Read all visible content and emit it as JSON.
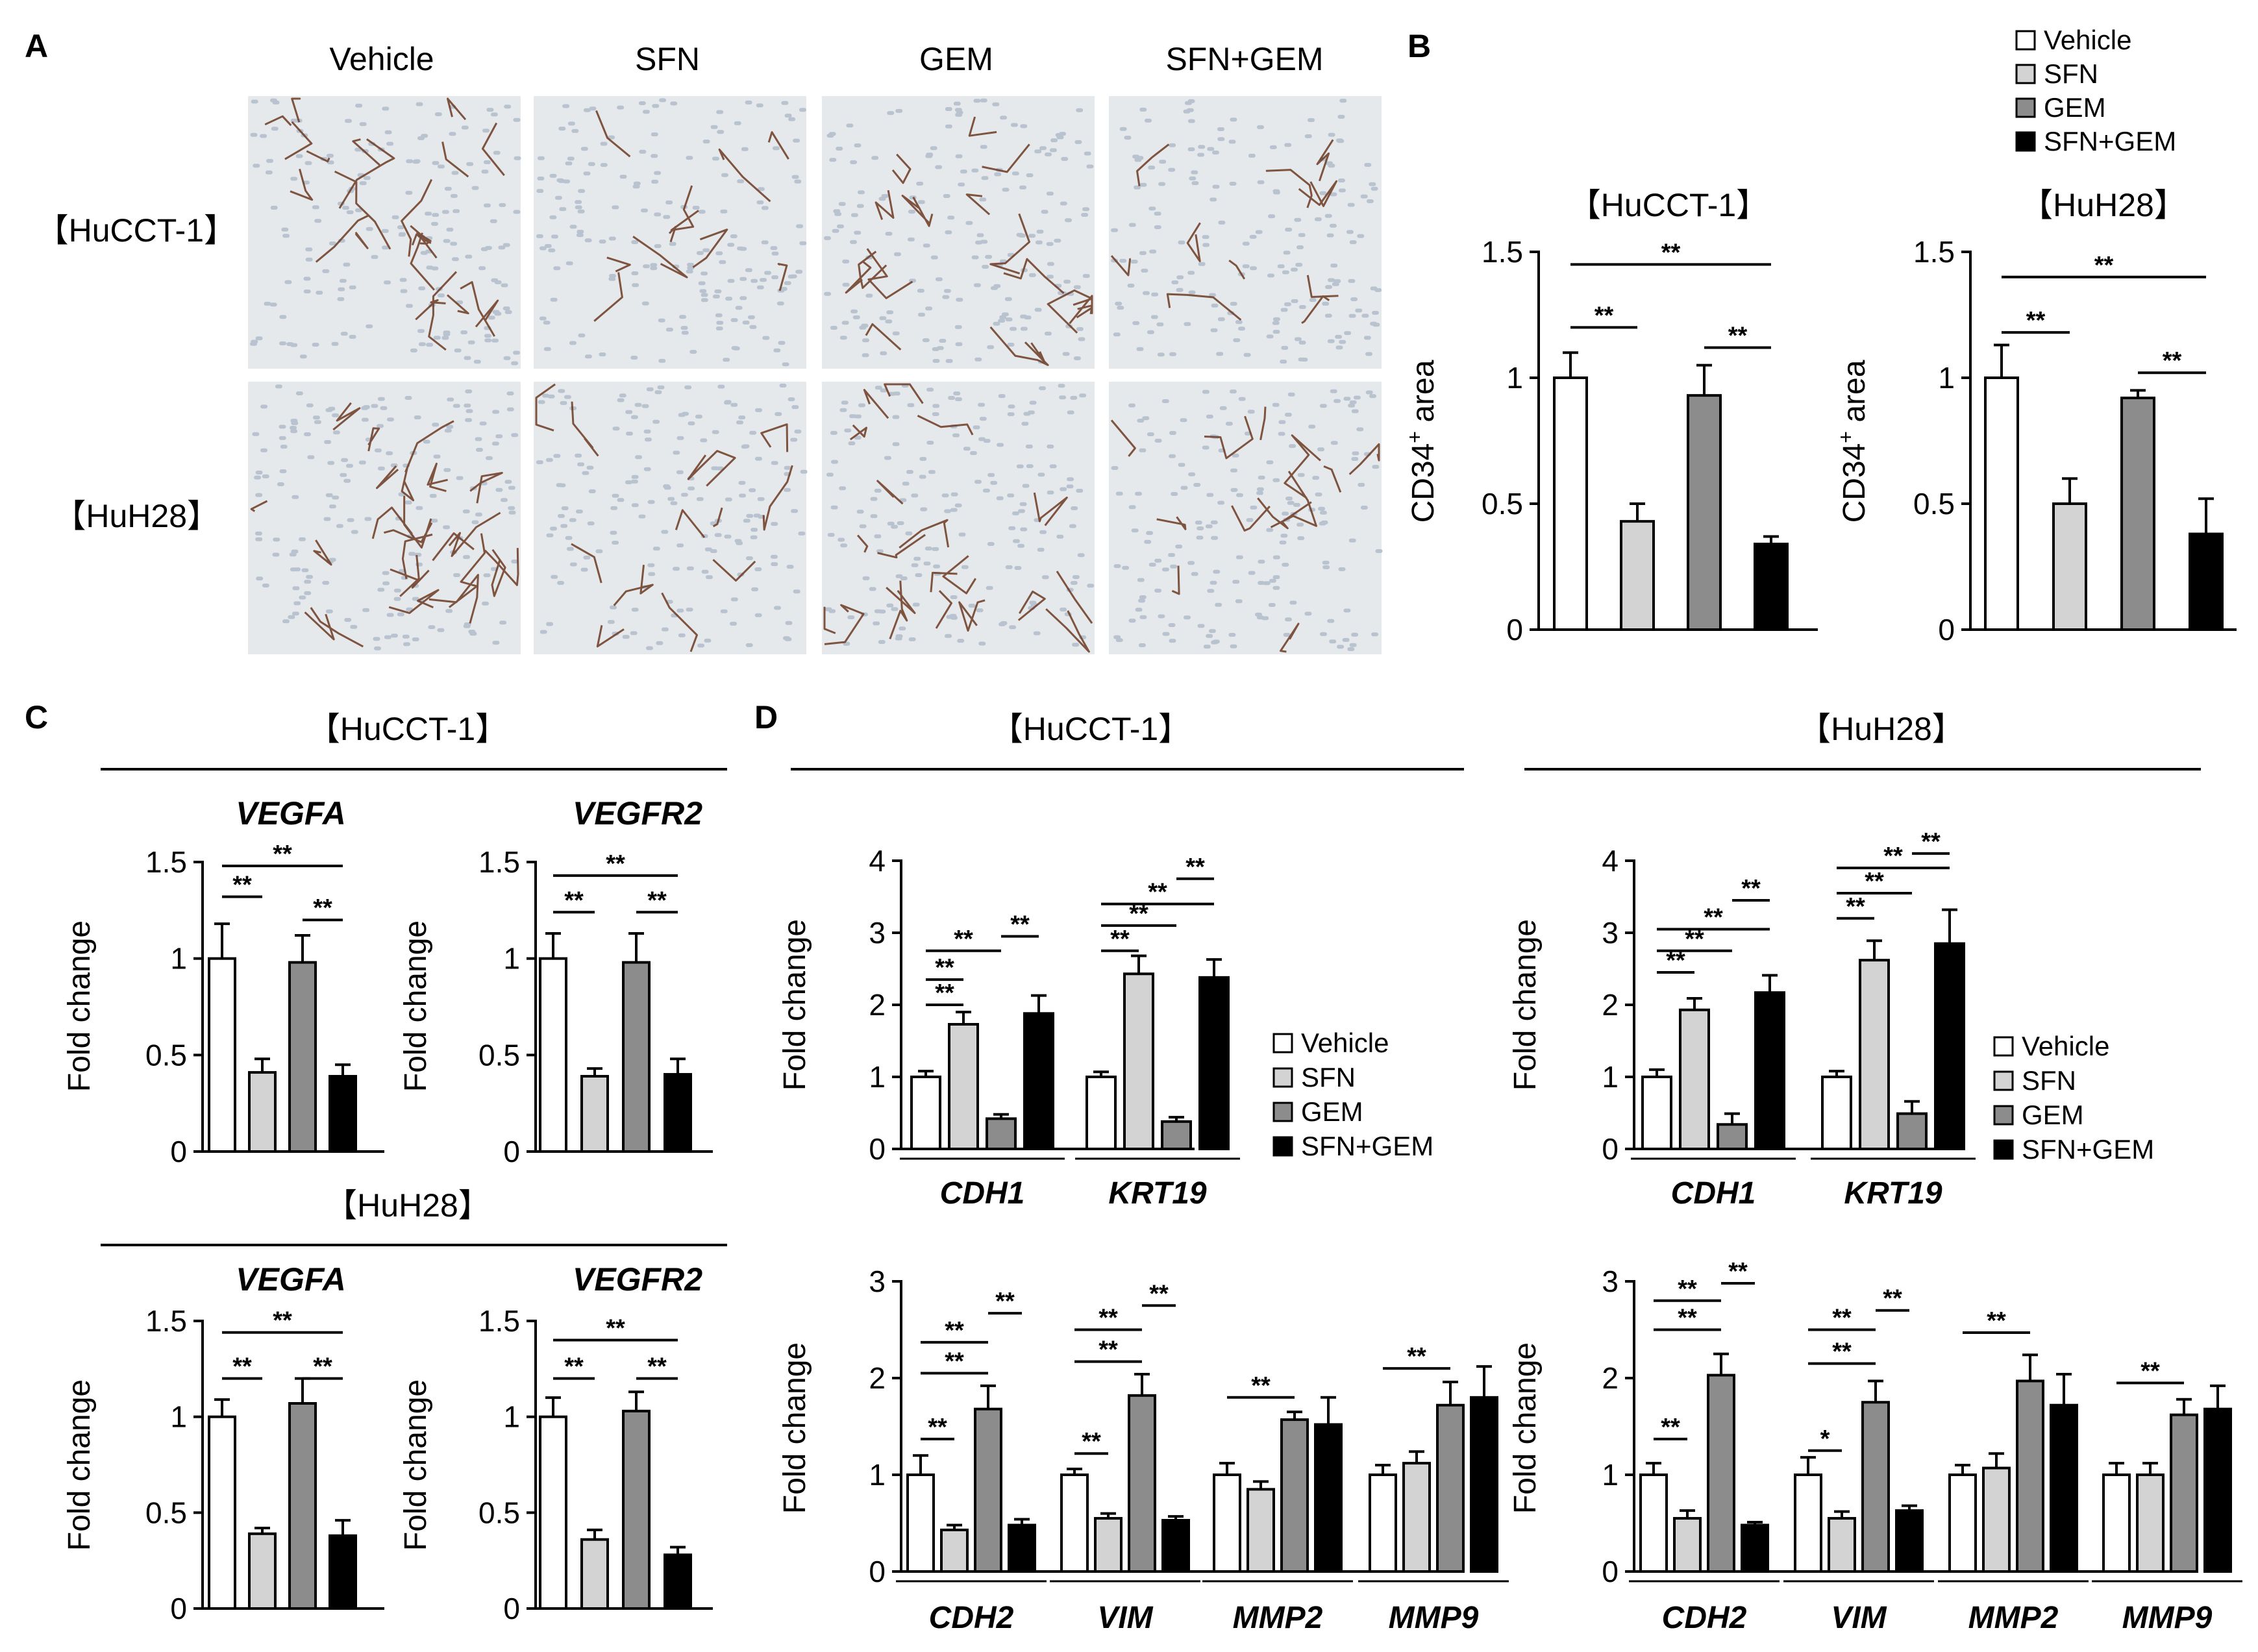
{
  "figure": {
    "panel_labels": [
      "A",
      "B",
      "C",
      "D"
    ],
    "panel_a": {
      "columns": [
        "Vehicle",
        "SFN",
        "GEM",
        "SFN+GEM"
      ],
      "rows": [
        "【HuCCT-1】",
        "【HuH28】"
      ]
    },
    "legend": [
      "Vehicle",
      "SFN",
      "GEM",
      "SFN+GEM"
    ],
    "section_titles": {
      "c_top": "【HuCCT-1】",
      "c_bottom": "【HuH28】",
      "d_left": "【HuCCT-1】",
      "d_right": "【HuH28】"
    },
    "significance": [
      "**",
      "*"
    ]
  },
  "colors": {
    "Vehicle": "#ffffff",
    "SFN": "#d3d3d3",
    "GEM": "#8c8c8c",
    "SFN+GEM": "#000000",
    "stain_brown": "#6b3a22",
    "tissue_bg": "#e6e9ec",
    "nuclei": "#b9c3d0"
  },
  "chart_data": [
    {
      "id": "B-HuCCT-1",
      "type": "bar",
      "title": "【HuCCT-1】",
      "ylabel": "CD34+ area",
      "ylim": [
        0,
        1.5
      ],
      "yticks": [
        "0",
        "0.5",
        "1",
        "1.5"
      ],
      "categories": [
        ""
      ],
      "series": [
        {
          "name": "Vehicle",
          "values": [
            1.0
          ],
          "errors": [
            0.1
          ]
        },
        {
          "name": "SFN",
          "values": [
            0.43
          ],
          "errors": [
            0.07
          ]
        },
        {
          "name": "GEM",
          "values": [
            0.93
          ],
          "errors": [
            0.12
          ]
        },
        {
          "name": "SFN+GEM",
          "values": [
            0.34
          ],
          "errors": [
            0.03
          ]
        }
      ],
      "brackets": [
        {
          "text": "**",
          "from": 0,
          "to": 3,
          "level": 1.45
        },
        {
          "text": "**",
          "from": 0,
          "to": 1,
          "level": 1.2
        },
        {
          "text": "**",
          "from": 2,
          "to": 3,
          "level": 1.12
        }
      ]
    },
    {
      "id": "B-HuH28",
      "type": "bar",
      "title": "【HuH28】",
      "ylabel": "CD34+ area",
      "ylim": [
        0,
        1.5
      ],
      "yticks": [
        "0",
        "0.5",
        "1",
        "1.5"
      ],
      "categories": [
        ""
      ],
      "series": [
        {
          "name": "Vehicle",
          "values": [
            1.0
          ],
          "errors": [
            0.13
          ]
        },
        {
          "name": "SFN",
          "values": [
            0.5
          ],
          "errors": [
            0.1
          ]
        },
        {
          "name": "GEM",
          "values": [
            0.92
          ],
          "errors": [
            0.03
          ]
        },
        {
          "name": "SFN+GEM",
          "values": [
            0.38
          ],
          "errors": [
            0.14
          ]
        }
      ],
      "brackets": [
        {
          "text": "**",
          "from": 0,
          "to": 3,
          "level": 1.4
        },
        {
          "text": "**",
          "from": 0,
          "to": 1,
          "level": 1.18
        },
        {
          "text": "**",
          "from": 2,
          "to": 3,
          "level": 1.02
        }
      ]
    },
    {
      "id": "C-HuCCT-1-VEGFA",
      "type": "bar",
      "title": "VEGFA",
      "ylabel": "Fold change",
      "ylim": [
        0,
        1.5
      ],
      "yticks": [
        "0",
        "0.5",
        "1",
        "1.5"
      ],
      "categories": [
        ""
      ],
      "series": [
        {
          "name": "Vehicle",
          "values": [
            1.0
          ],
          "errors": [
            0.18
          ]
        },
        {
          "name": "SFN",
          "values": [
            0.41
          ],
          "errors": [
            0.07
          ]
        },
        {
          "name": "GEM",
          "values": [
            0.98
          ],
          "errors": [
            0.14
          ]
        },
        {
          "name": "SFN+GEM",
          "values": [
            0.39
          ],
          "errors": [
            0.06
          ]
        }
      ],
      "brackets": [
        {
          "text": "**",
          "from": 0,
          "to": 3,
          "level": 1.48
        },
        {
          "text": "**",
          "from": 0,
          "to": 1,
          "level": 1.32
        },
        {
          "text": "**",
          "from": 2,
          "to": 3,
          "level": 1.2
        }
      ]
    },
    {
      "id": "C-HuCCT-1-VEGFR2",
      "type": "bar",
      "title": "VEGFR2",
      "ylabel": "Fold change",
      "ylim": [
        0,
        1.5
      ],
      "yticks": [
        "0",
        "0.5",
        "1",
        "1.5"
      ],
      "categories": [
        ""
      ],
      "series": [
        {
          "name": "Vehicle",
          "values": [
            1.0
          ],
          "errors": [
            0.13
          ]
        },
        {
          "name": "SFN",
          "values": [
            0.39
          ],
          "errors": [
            0.04
          ]
        },
        {
          "name": "GEM",
          "values": [
            0.98
          ],
          "errors": [
            0.15
          ]
        },
        {
          "name": "SFN+GEM",
          "values": [
            0.4
          ],
          "errors": [
            0.08
          ]
        }
      ],
      "brackets": [
        {
          "text": "**",
          "from": 0,
          "to": 3,
          "level": 1.43
        },
        {
          "text": "**",
          "from": 0,
          "to": 1,
          "level": 1.24
        },
        {
          "text": "**",
          "from": 2,
          "to": 3,
          "level": 1.24
        }
      ]
    },
    {
      "id": "C-HuH28-VEGFA",
      "type": "bar",
      "title": "VEGFA",
      "ylabel": "Fold change",
      "ylim": [
        0,
        1.5
      ],
      "yticks": [
        "0",
        "0.5",
        "1",
        "1.5"
      ],
      "categories": [
        ""
      ],
      "series": [
        {
          "name": "Vehicle",
          "values": [
            1.0
          ],
          "errors": [
            0.09
          ]
        },
        {
          "name": "SFN",
          "values": [
            0.39
          ],
          "errors": [
            0.03
          ]
        },
        {
          "name": "GEM",
          "values": [
            1.07
          ],
          "errors": [
            0.13
          ]
        },
        {
          "name": "SFN+GEM",
          "values": [
            0.38
          ],
          "errors": [
            0.08
          ]
        }
      ],
      "brackets": [
        {
          "text": "**",
          "from": 0,
          "to": 3,
          "level": 1.44
        },
        {
          "text": "**",
          "from": 0,
          "to": 1,
          "level": 1.2
        },
        {
          "text": "**",
          "from": 2,
          "to": 3,
          "level": 1.2
        }
      ]
    },
    {
      "id": "C-HuH28-VEGFR2",
      "type": "bar",
      "title": "VEGFR2",
      "ylabel": "Fold change",
      "ylim": [
        0,
        1.5
      ],
      "yticks": [
        "0",
        "0.5",
        "1",
        "1.5"
      ],
      "categories": [
        ""
      ],
      "series": [
        {
          "name": "Vehicle",
          "values": [
            1.0
          ],
          "errors": [
            0.1
          ]
        },
        {
          "name": "SFN",
          "values": [
            0.36
          ],
          "errors": [
            0.05
          ]
        },
        {
          "name": "GEM",
          "values": [
            1.03
          ],
          "errors": [
            0.1
          ]
        },
        {
          "name": "SFN+GEM",
          "values": [
            0.28
          ],
          "errors": [
            0.04
          ]
        }
      ],
      "brackets": [
        {
          "text": "**",
          "from": 0,
          "to": 3,
          "level": 1.4
        },
        {
          "text": "**",
          "from": 0,
          "to": 1,
          "level": 1.2
        },
        {
          "text": "**",
          "from": 2,
          "to": 3,
          "level": 1.2
        }
      ]
    },
    {
      "id": "D-HuCCT-1-top",
      "type": "bar",
      "title": "",
      "ylabel": "Fold change",
      "ylim": [
        0,
        4
      ],
      "yticks": [
        "0",
        "1",
        "2",
        "3",
        "4"
      ],
      "categories": [
        "CDH1",
        "KRT19"
      ],
      "series": [
        {
          "name": "Vehicle",
          "values": [
            1.0,
            1.0
          ],
          "errors": [
            0.08,
            0.07
          ]
        },
        {
          "name": "SFN",
          "values": [
            1.73,
            2.43
          ],
          "errors": [
            0.17,
            0.25
          ]
        },
        {
          "name": "GEM",
          "values": [
            0.42,
            0.38
          ],
          "errors": [
            0.06,
            0.06
          ]
        },
        {
          "name": "SFN+GEM",
          "values": [
            1.88,
            2.38
          ],
          "errors": [
            0.25,
            0.25
          ]
        }
      ],
      "brackets": [
        {
          "text": "**",
          "group": 0,
          "from": 0,
          "to": 2,
          "level": 2.75
        },
        {
          "text": "**",
          "group": 0,
          "from": 0,
          "to": 1,
          "level": 2.35
        },
        {
          "text": "**",
          "group": 0,
          "from": 0,
          "to": 1,
          "level": 2.0
        },
        {
          "text": "**",
          "group": 0,
          "from": 2,
          "to": 3,
          "level": 2.95
        },
        {
          "text": "**",
          "group": 1,
          "from": 0,
          "to": 3,
          "level": 3.4
        },
        {
          "text": "**",
          "group": 1,
          "from": 0,
          "to": 2,
          "level": 3.1
        },
        {
          "text": "**",
          "group": 1,
          "from": 0,
          "to": 1,
          "level": 2.75
        },
        {
          "text": "**",
          "group": 1,
          "from": 2,
          "to": 3,
          "level": 3.75
        }
      ]
    },
    {
      "id": "D-HuCCT-1-bottom",
      "type": "bar",
      "title": "",
      "ylabel": "Fold change",
      "ylim": [
        0,
        3
      ],
      "yticks": [
        "0",
        "1",
        "2",
        "3"
      ],
      "categories": [
        "CDH2",
        "VIM",
        "MMP2",
        "MMP9"
      ],
      "series": [
        {
          "name": "Vehicle",
          "values": [
            1.0,
            1.0,
            1.0,
            1.0
          ],
          "errors": [
            0.2,
            0.06,
            0.12,
            0.1
          ]
        },
        {
          "name": "SFN",
          "values": [
            0.43,
            0.55,
            0.85,
            1.12
          ],
          "errors": [
            0.05,
            0.05,
            0.08,
            0.12
          ]
        },
        {
          "name": "GEM",
          "values": [
            1.68,
            1.82,
            1.57,
            1.72
          ],
          "errors": [
            0.24,
            0.22,
            0.08,
            0.24
          ]
        },
        {
          "name": "SFN+GEM",
          "values": [
            0.48,
            0.53,
            1.52,
            1.8
          ],
          "errors": [
            0.06,
            0.04,
            0.28,
            0.32
          ]
        }
      ],
      "brackets": [
        {
          "text": "**",
          "group": 0,
          "from": 0,
          "to": 1,
          "level": 1.37
        },
        {
          "text": "**",
          "group": 0,
          "from": 0,
          "to": 2,
          "level": 2.05
        },
        {
          "text": "**",
          "group": 0,
          "from": 0,
          "to": 2,
          "level": 2.37
        },
        {
          "text": "**",
          "group": 0,
          "from": 2,
          "to": 3,
          "level": 2.67
        },
        {
          "text": "**",
          "group": 1,
          "from": 0,
          "to": 1,
          "level": 1.22
        },
        {
          "text": "**",
          "group": 1,
          "from": 0,
          "to": 2,
          "level": 2.17
        },
        {
          "text": "**",
          "group": 1,
          "from": 0,
          "to": 2,
          "level": 2.5
        },
        {
          "text": "**",
          "group": 1,
          "from": 2,
          "to": 3,
          "level": 2.75
        },
        {
          "text": "**",
          "group": 2,
          "from": 0,
          "to": 2,
          "level": 1.8
        },
        {
          "text": "**",
          "group": 3,
          "from": 0,
          "to": 2,
          "level": 2.1
        }
      ]
    },
    {
      "id": "D-HuH28-top",
      "type": "bar",
      "title": "",
      "ylabel": "Fold change",
      "ylim": [
        0,
        4
      ],
      "yticks": [
        "0",
        "1",
        "2",
        "3",
        "4"
      ],
      "categories": [
        "CDH1",
        "KRT19"
      ],
      "series": [
        {
          "name": "Vehicle",
          "values": [
            1.0,
            1.0
          ],
          "errors": [
            0.1,
            0.08
          ]
        },
        {
          "name": "SFN",
          "values": [
            1.93,
            2.62
          ],
          "errors": [
            0.16,
            0.27
          ]
        },
        {
          "name": "GEM",
          "values": [
            0.34,
            0.49
          ],
          "errors": [
            0.15,
            0.17
          ]
        },
        {
          "name": "SFN+GEM",
          "values": [
            2.17,
            2.85
          ],
          "errors": [
            0.24,
            0.47
          ]
        }
      ],
      "brackets": [
        {
          "text": "**",
          "group": 0,
          "from": 0,
          "to": 3,
          "level": 3.05
        },
        {
          "text": "**",
          "group": 0,
          "from": 0,
          "to": 2,
          "level": 2.75
        },
        {
          "text": "**",
          "group": 0,
          "from": 0,
          "to": 1,
          "level": 2.45
        },
        {
          "text": "**",
          "group": 0,
          "from": 2,
          "to": 3,
          "level": 3.45
        },
        {
          "text": "**",
          "group": 1,
          "from": 0,
          "to": 3,
          "level": 3.9
        },
        {
          "text": "**",
          "group": 1,
          "from": 0,
          "to": 2,
          "level": 3.55
        },
        {
          "text": "**",
          "group": 1,
          "from": 0,
          "to": 1,
          "level": 3.2
        },
        {
          "text": "**",
          "group": 1,
          "from": 2,
          "to": 3,
          "level": 4.1
        }
      ]
    },
    {
      "id": "D-HuH28-bottom",
      "type": "bar",
      "title": "",
      "ylabel": "Fold change",
      "ylim": [
        0,
        3
      ],
      "yticks": [
        "0",
        "1",
        "2",
        "3"
      ],
      "categories": [
        "CDH2",
        "VIM",
        "MMP2",
        "MMP9"
      ],
      "series": [
        {
          "name": "Vehicle",
          "values": [
            1.0,
            1.0,
            1.0,
            1.0
          ],
          "errors": [
            0.12,
            0.18,
            0.1,
            0.12
          ]
        },
        {
          "name": "SFN",
          "values": [
            0.55,
            0.55,
            1.07,
            1.0
          ],
          "errors": [
            0.08,
            0.07,
            0.15,
            0.12
          ]
        },
        {
          "name": "GEM",
          "values": [
            2.03,
            1.75,
            1.97,
            1.62
          ],
          "errors": [
            0.22,
            0.22,
            0.27,
            0.16
          ]
        },
        {
          "name": "SFN+GEM",
          "values": [
            0.48,
            0.63,
            1.72,
            1.68
          ],
          "errors": [
            0.03,
            0.05,
            0.32,
            0.24
          ]
        }
      ],
      "brackets": [
        {
          "text": "**",
          "group": 0,
          "from": 0,
          "to": 1,
          "level": 1.37
        },
        {
          "text": "**",
          "group": 0,
          "from": 0,
          "to": 2,
          "level": 2.5
        },
        {
          "text": "**",
          "group": 0,
          "from": 0,
          "to": 2,
          "level": 2.8
        },
        {
          "text": "**",
          "group": 0,
          "from": 2,
          "to": 3,
          "level": 2.98
        },
        {
          "text": "*",
          "group": 1,
          "from": 0,
          "to": 1,
          "level": 1.25
        },
        {
          "text": "**",
          "group": 1,
          "from": 0,
          "to": 2,
          "level": 2.15
        },
        {
          "text": "**",
          "group": 1,
          "from": 0,
          "to": 2,
          "level": 2.5
        },
        {
          "text": "**",
          "group": 1,
          "from": 2,
          "to": 3,
          "level": 2.7
        },
        {
          "text": "**",
          "group": 2,
          "from": 0,
          "to": 2,
          "level": 2.47
        },
        {
          "text": "**",
          "group": 3,
          "from": 0,
          "to": 2,
          "level": 1.95
        }
      ]
    }
  ]
}
